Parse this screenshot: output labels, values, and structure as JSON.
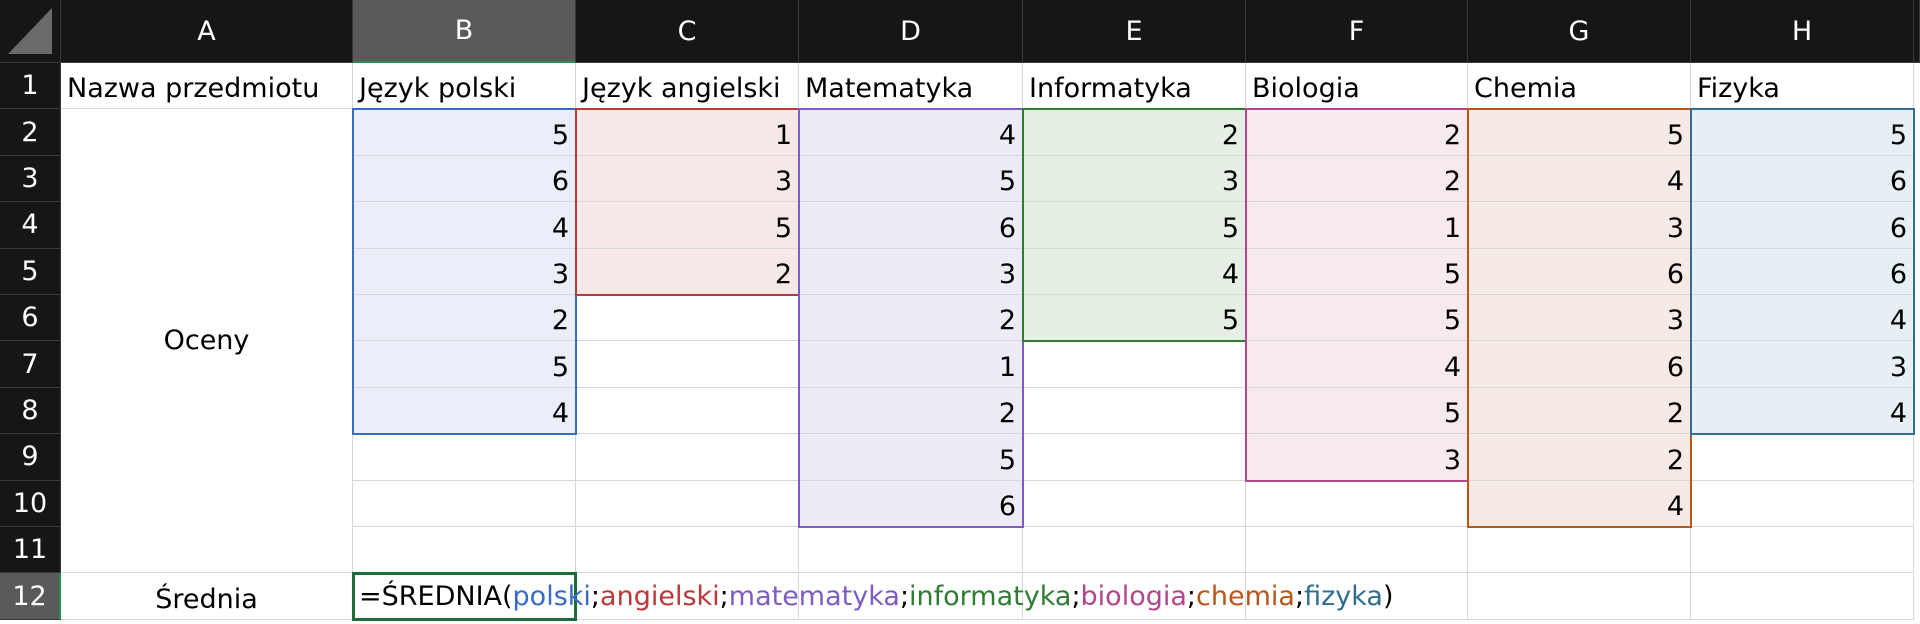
{
  "column_headers": [
    "A",
    "B",
    "C",
    "D",
    "E",
    "F",
    "G",
    "H"
  ],
  "row_headers": [
    "1",
    "2",
    "3",
    "4",
    "5",
    "6",
    "7",
    "8",
    "9",
    "10",
    "11",
    "12"
  ],
  "selected_column": "B",
  "selected_row": "12",
  "a1": "Nazwa przedmiotu",
  "a_merged_label": "Oceny",
  "a12": "Średnia",
  "subjects": [
    {
      "name": "Język polski",
      "values": [
        5,
        6,
        4,
        3,
        2,
        5,
        4
      ],
      "color": "#3a6bc4",
      "fill": "#e9eef8"
    },
    {
      "name": "Język angielski",
      "values": [
        1,
        3,
        5,
        2
      ],
      "color": "#b83a3a",
      "fill": "#f7e8e8"
    },
    {
      "name": "Matematyka",
      "values": [
        4,
        5,
        6,
        3,
        2,
        1,
        2,
        5,
        6
      ],
      "color": "#7e5cc4",
      "fill": "#eeebf6"
    },
    {
      "name": "Informatyka",
      "values": [
        2,
        3,
        5,
        4,
        5
      ],
      "color": "#2e7d32",
      "fill": "#e6efe4"
    },
    {
      "name": "Biologia",
      "values": [
        2,
        2,
        1,
        5,
        5,
        4,
        5,
        3
      ],
      "color": "#b0478a",
      "fill": "#f6e9f0"
    },
    {
      "name": "Chemia",
      "values": [
        5,
        4,
        3,
        6,
        3,
        6,
        2,
        2,
        4
      ],
      "color": "#b8561b",
      "fill": "#f6ebe4"
    },
    {
      "name": "Fizyka",
      "values": [
        5,
        6,
        6,
        6,
        4,
        3,
        4
      ],
      "color": "#2f6e8f",
      "fill": "#e6eff3"
    }
  ],
  "formula": {
    "prefix": "=ŚREDNIA(",
    "args": [
      "polski",
      "angielski",
      "matematyka",
      "informatyka",
      "biologia",
      "chemia",
      "fizyka"
    ],
    "separator": ";",
    "suffix": ")"
  }
}
